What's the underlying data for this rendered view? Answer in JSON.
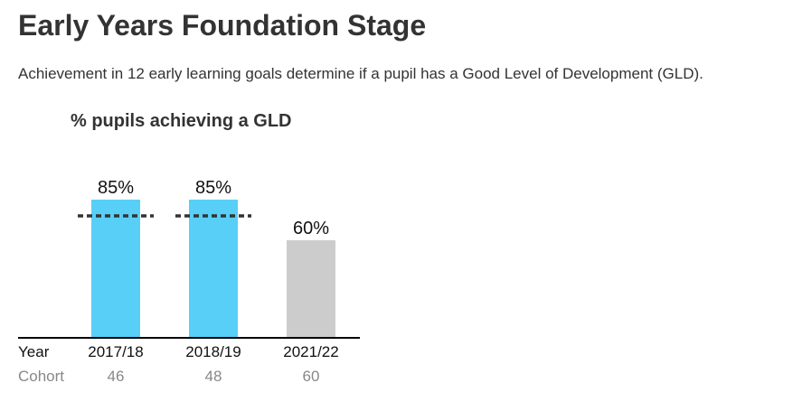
{
  "page": {
    "title": "Early Years Foundation Stage",
    "intro": "Achievement in 12 early learning goals determine if a pupil has a Good Level of Development (GLD)."
  },
  "chart_data": {
    "type": "bar",
    "title": "% pupils achieving a GLD",
    "categories": [
      "2017/18",
      "2018/19",
      "2021/22"
    ],
    "values": [
      85,
      85,
      60
    ],
    "value_labels": [
      "85%",
      "85%",
      "60%"
    ],
    "benchmark_values": [
      75,
      75,
      null
    ],
    "row_labels": {
      "year": "Year",
      "cohort": "Cohort"
    },
    "cohorts": [
      "46",
      "48",
      "60"
    ],
    "ylim": [
      0,
      100
    ],
    "grid": false,
    "legend": "none",
    "colors": {
      "bars": [
        "#58cff7",
        "#58cff7",
        "#cccccc"
      ],
      "benchmark": "#333333",
      "axis": "#000000",
      "cohort_text": "#888888"
    }
  }
}
